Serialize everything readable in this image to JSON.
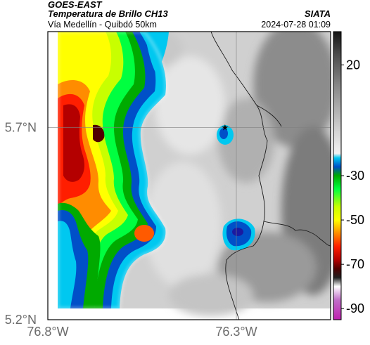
{
  "header": {
    "satellite": "GOES-EAST",
    "title": "Temperatura de Brillo CH13",
    "organization": "SIATA",
    "location": "Vía Medellín - Quibdó 50km",
    "datetime": "2024-07-28 01:09"
  },
  "map": {
    "lat_range": [
      5.2,
      5.95
    ],
    "lon_range": [
      -76.8,
      -76.05
    ],
    "lat_ticks": [
      {
        "value": 5.7,
        "label": "5.7°N"
      },
      {
        "value": 5.2,
        "label": "5.2°N"
      }
    ],
    "lon_ticks": [
      {
        "value": -76.8,
        "label": "76.8°W"
      },
      {
        "value": -76.3,
        "label": "76.3°W"
      }
    ],
    "marker": {
      "name": "star-marker-icon",
      "lat": 5.7,
      "lon": -76.33
    }
  },
  "colorbar": {
    "range": [
      -95,
      35
    ],
    "ticks": [
      {
        "value": 20,
        "label": "20"
      },
      {
        "value": -30,
        "label": "-30"
      },
      {
        "value": -50,
        "label": "-50"
      },
      {
        "value": -70,
        "label": "-70"
      },
      {
        "value": -90,
        "label": "-90"
      }
    ],
    "stops": [
      {
        "value": 35,
        "color": "#141414"
      },
      {
        "value": 25,
        "color": "#4a4a4a"
      },
      {
        "value": 10,
        "color": "#8a8a8a"
      },
      {
        "value": -10,
        "color": "#d4d4d4"
      },
      {
        "value": -20,
        "color": "#f2f2f2"
      },
      {
        "value": -22,
        "color": "#00c8f0"
      },
      {
        "value": -26,
        "color": "#0050c8"
      },
      {
        "value": -30,
        "color": "#00aa00"
      },
      {
        "value": -36,
        "color": "#00ff40"
      },
      {
        "value": -44,
        "color": "#c8ff00"
      },
      {
        "value": -50,
        "color": "#ffff00"
      },
      {
        "value": -56,
        "color": "#ff8c00"
      },
      {
        "value": -62,
        "color": "#ff1e00"
      },
      {
        "value": -68,
        "color": "#b40000"
      },
      {
        "value": -72,
        "color": "#500000"
      },
      {
        "value": -76,
        "color": "#202020"
      },
      {
        "value": -80,
        "color": "#ffffff"
      },
      {
        "value": -86,
        "color": "#c070c8"
      },
      {
        "value": -95,
        "color": "#c020b0"
      }
    ]
  }
}
